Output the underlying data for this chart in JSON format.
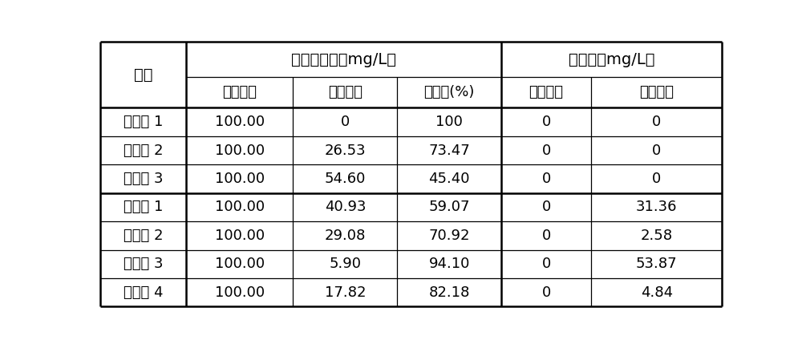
{
  "col_header_row1_left": "项目",
  "col_header_row1_ace": "乙酰甲胺磷（mg/L）",
  "col_header_row1_meth": "甲胺磷（mg/L）",
  "col_header_row2": [
    "初始浓度",
    "残留浓度",
    "降解率(%)",
    "初始浓度",
    "残留浓度"
  ],
  "rows": [
    [
      "实施例 1",
      "100.00",
      "0",
      "100",
      "0",
      "0"
    ],
    [
      "实施例 2",
      "100.00",
      "26.53",
      "73.47",
      "0",
      "0"
    ],
    [
      "实施例 3",
      "100.00",
      "54.60",
      "45.40",
      "0",
      "0"
    ],
    [
      "比较例 1",
      "100.00",
      "40.93",
      "59.07",
      "0",
      "31.36"
    ],
    [
      "比较例 2",
      "100.00",
      "29.08",
      "70.92",
      "0",
      "2.58"
    ],
    [
      "比较例 3",
      "100.00",
      "5.90",
      "94.10",
      "0",
      "53.87"
    ],
    [
      "比较例 4",
      "100.00",
      "17.82",
      "82.18",
      "0",
      "4.84"
    ]
  ],
  "bg_color": "#ffffff",
  "border_color": "#000000",
  "font_size": 13,
  "thick_lw": 1.8,
  "thin_lw": 0.9
}
